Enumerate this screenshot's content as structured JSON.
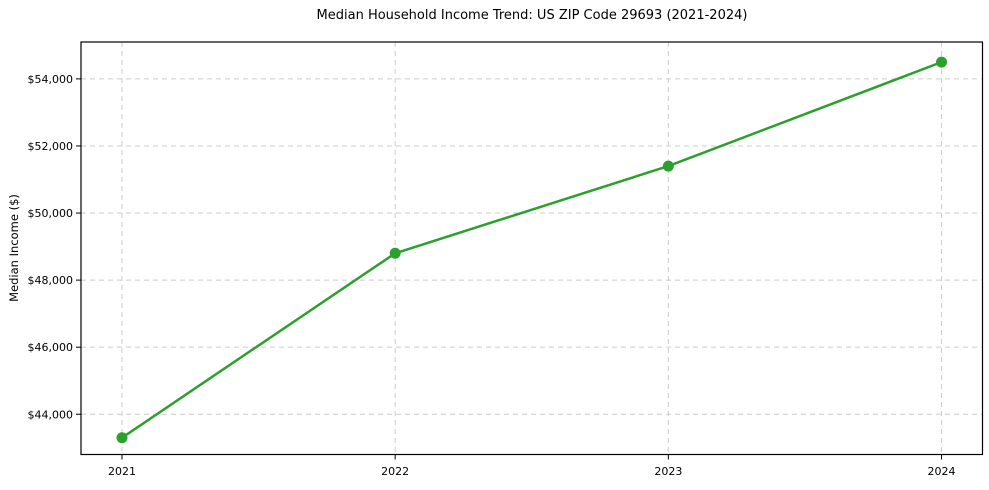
{
  "chart_data": {
    "type": "line",
    "title": "Median Household Income Trend: US ZIP Code 29693 (2021-2024)",
    "xlabel": "",
    "ylabel": "Median Income ($)",
    "categories": [
      "2021",
      "2022",
      "2023",
      "2024"
    ],
    "x": [
      2021,
      2022,
      2023,
      2024
    ],
    "series": [
      {
        "name": "Median household income",
        "values": [
          43300,
          48800,
          51400,
          54500
        ]
      }
    ],
    "y_ticks": [
      {
        "value": 44000,
        "label": "$44,000"
      },
      {
        "value": 46000,
        "label": "$46,000"
      },
      {
        "value": 48000,
        "label": "$48,000"
      },
      {
        "value": 50000,
        "label": "$50,000"
      },
      {
        "value": 52000,
        "label": "$52,000"
      },
      {
        "value": 54000,
        "label": "$54,000"
      }
    ],
    "xlim": [
      2020.85,
      2024.15
    ],
    "ylim": [
      42800,
      55100
    ],
    "grid": true,
    "grid_style": "dashed",
    "legend_position": "none",
    "colors": {
      "line": "#2ca02c",
      "marker": "#2ca02c",
      "grid": "#cccccc",
      "spine": "#000000",
      "text": "#000000",
      "background": "#ffffff"
    }
  }
}
